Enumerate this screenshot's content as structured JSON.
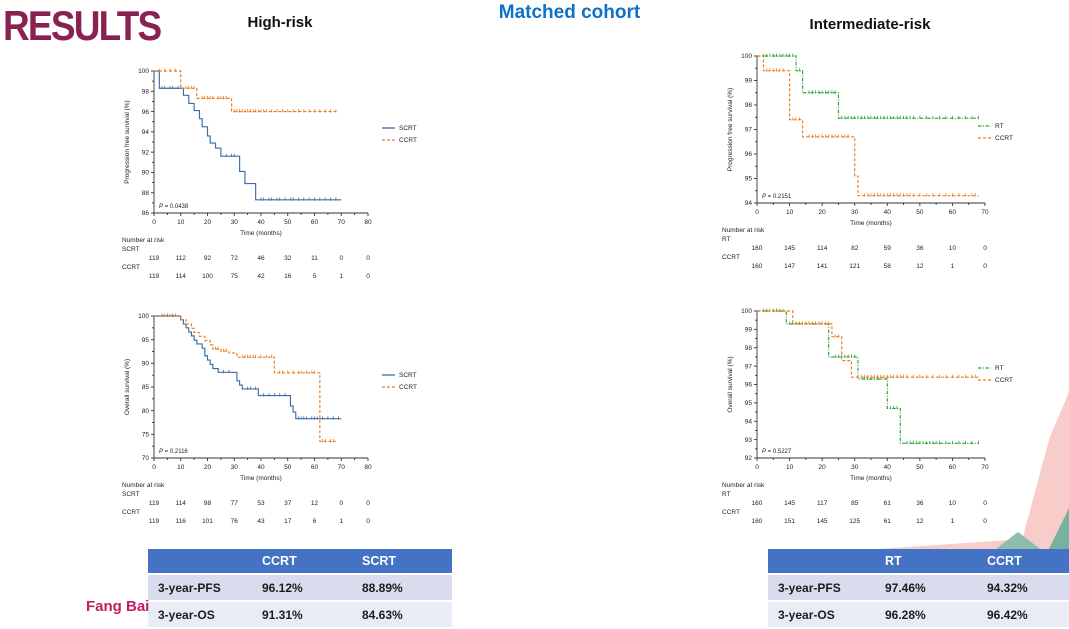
{
  "slide": {
    "title": "RESULTS",
    "center_header": "Matched cohort",
    "left_header": "High-risk",
    "right_header": "Intermediate-risk",
    "author": "Fang Bai",
    "colors": {
      "title": "#8A2251",
      "subtitle": "#0E72C6",
      "author": "#C02062",
      "risk_text": "#3333B2",
      "scrt": "#3C6EA5",
      "ccrt": "#E97C20",
      "rt": "#2FA037",
      "table_header_bg": "#4472C4",
      "row_odd_bg": "#D9DCEC",
      "row_even_bg": "#EAECF5"
    }
  },
  "chart_data": [
    {
      "id": "pfs-high-risk",
      "type": "line",
      "subtype": "kaplan-meier",
      "group": "High-risk",
      "ylabel": "Progression free survival (%)",
      "xlabel": "Time (months)",
      "ylim": [
        86,
        100
      ],
      "ytick": 2,
      "xlim": [
        0,
        80
      ],
      "xtick": 10,
      "p_value": "P = 0.0438",
      "legend_position": "right",
      "series": [
        {
          "name": "SCRT",
          "color_key": "scrt",
          "style": "solid",
          "steps": [
            [
              0,
              100
            ],
            [
              2,
              98.3
            ],
            [
              11,
              97.6
            ],
            [
              13,
              96.8
            ],
            [
              15,
              96.1
            ],
            [
              17,
              95.3
            ],
            [
              18,
              94.5
            ],
            [
              20,
              93.6
            ],
            [
              21,
              92.9
            ],
            [
              23,
              92.4
            ],
            [
              25,
              91.6
            ],
            [
              32,
              90.1
            ],
            [
              34,
              88.9
            ],
            [
              38,
              87.3
            ],
            [
              70,
              87.3
            ]
          ],
          "censors": [
            3,
            4,
            6,
            7,
            9,
            27,
            29,
            30,
            40,
            41,
            43,
            44,
            46,
            47,
            49,
            51,
            52,
            54,
            56,
            58,
            60,
            62,
            64,
            66,
            68
          ]
        },
        {
          "name": "CCRT",
          "color_key": "ccrt",
          "style": "dashed",
          "steps": [
            [
              0,
              100
            ],
            [
              10,
              98.3
            ],
            [
              16,
              97.3
            ],
            [
              29,
              96.0
            ],
            [
              69,
              96.0
            ]
          ],
          "censors": [
            2,
            4,
            6,
            8,
            12,
            13,
            14,
            15,
            18,
            19,
            20,
            21,
            22,
            24,
            25,
            26,
            27,
            30,
            31,
            32,
            33,
            34,
            35,
            36,
            37,
            38,
            39,
            40,
            41,
            42,
            44,
            46,
            48,
            50,
            52,
            54,
            56,
            58,
            60,
            62,
            64,
            66,
            68
          ]
        }
      ],
      "risk_label": "Number at risk",
      "risk_rows": [
        {
          "name": "SCRT",
          "values": [
            119,
            112,
            92,
            72,
            46,
            32,
            11,
            0,
            0
          ]
        },
        {
          "name": "CCRT",
          "values": [
            119,
            114,
            100,
            75,
            42,
            16,
            5,
            1,
            0
          ]
        }
      ]
    },
    {
      "id": "os-high-risk",
      "type": "line",
      "subtype": "kaplan-meier",
      "group": "High-risk",
      "ylabel": "Overall survival (%)",
      "xlabel": "Time (months)",
      "ylim": [
        70,
        100
      ],
      "ytick": 5,
      "xlim": [
        0,
        80
      ],
      "xtick": 10,
      "p_value": "P = 0.2116",
      "legend_position": "right",
      "series": [
        {
          "name": "SCRT",
          "color_key": "scrt",
          "style": "solid",
          "steps": [
            [
              0,
              100
            ],
            [
              10,
              99.2
            ],
            [
              11,
              98.3
            ],
            [
              12,
              97.5
            ],
            [
              13,
              96.6
            ],
            [
              14,
              95.8
            ],
            [
              15,
              94.9
            ],
            [
              16,
              94.1
            ],
            [
              18,
              93.2
            ],
            [
              19,
              91.6
            ],
            [
              20,
              90.7
            ],
            [
              21,
              89.8
            ],
            [
              22,
              88.9
            ],
            [
              24,
              88.1
            ],
            [
              31,
              86.3
            ],
            [
              32,
              85.4
            ],
            [
              33,
              84.6
            ],
            [
              39,
              83.2
            ],
            [
              51,
              81.0
            ],
            [
              52,
              79.7
            ],
            [
              53,
              78.3
            ],
            [
              70,
              78.3
            ]
          ],
          "censors": [
            3,
            5,
            7,
            8,
            26,
            28,
            35,
            36,
            38,
            41,
            43,
            45,
            47,
            49,
            54,
            55,
            56,
            57,
            59,
            60,
            61,
            63,
            65,
            67,
            69
          ]
        },
        {
          "name": "CCRT",
          "color_key": "ccrt",
          "style": "dashed",
          "steps": [
            [
              0,
              100
            ],
            [
              10,
              99.2
            ],
            [
              12,
              98.3
            ],
            [
              14,
              97.4
            ],
            [
              15,
              96.5
            ],
            [
              17,
              95.7
            ],
            [
              19,
              94.8
            ],
            [
              21,
              93.9
            ],
            [
              22,
              93.0
            ],
            [
              25,
              92.6
            ],
            [
              28,
              92.2
            ],
            [
              31,
              91.3
            ],
            [
              45,
              88.0
            ],
            [
              62,
              73.5
            ],
            [
              68,
              73.5
            ]
          ],
          "censors": [
            4,
            6,
            8,
            23,
            24,
            26,
            27,
            33,
            34,
            35,
            36,
            37,
            38,
            40,
            42,
            44,
            47,
            48,
            50,
            52,
            54,
            55,
            57,
            59,
            60,
            63,
            64,
            66,
            67
          ]
        }
      ],
      "risk_label": "Number at risk",
      "risk_rows": [
        {
          "name": "SCRT",
          "values": [
            119,
            114,
            98,
            77,
            53,
            37,
            12,
            0,
            0
          ]
        },
        {
          "name": "CCRT",
          "values": [
            119,
            116,
            101,
            76,
            43,
            17,
            6,
            1,
            0
          ]
        }
      ]
    },
    {
      "id": "pfs-intermediate-risk",
      "type": "line",
      "subtype": "kaplan-meier",
      "group": "Intermediate-risk",
      "ylabel": "Progression free survival (%)",
      "xlabel": "Time (months)",
      "ylim": [
        94,
        100
      ],
      "ytick": 1,
      "xlim": [
        0,
        70
      ],
      "xtick": 10,
      "p_value": "P = 0.2151",
      "legend_position": "right",
      "series": [
        {
          "name": "RT",
          "color_key": "rt",
          "style": "dashdot",
          "steps": [
            [
              0,
              100
            ],
            [
              12,
              99.4
            ],
            [
              14,
              98.5
            ],
            [
              25,
              97.46
            ],
            [
              68,
              97.46
            ]
          ],
          "censors": [
            2,
            3,
            4,
            5,
            6,
            7,
            8,
            9,
            10,
            11,
            13,
            16,
            17,
            18,
            19,
            20,
            21,
            22,
            23,
            24,
            26,
            27,
            28,
            29,
            30,
            31,
            32,
            33,
            34,
            35,
            36,
            37,
            38,
            39,
            40,
            41,
            42,
            43,
            44,
            45,
            46,
            47,
            48,
            50,
            52,
            54,
            56,
            58,
            60,
            62,
            64,
            66,
            68
          ]
        },
        {
          "name": "CCRT",
          "color_key": "ccrt",
          "style": "dashed",
          "steps": [
            [
              0,
              100
            ],
            [
              2,
              99.4
            ],
            [
              10,
              97.4
            ],
            [
              14,
              96.7
            ],
            [
              30,
              95.1
            ],
            [
              31,
              94.3
            ],
            [
              68,
              94.3
            ]
          ],
          "censors": [
            3,
            4,
            5,
            6,
            7,
            8,
            11,
            12,
            13,
            16,
            17,
            18,
            19,
            20,
            21,
            22,
            23,
            24,
            25,
            26,
            27,
            28,
            33,
            34,
            35,
            36,
            37,
            38,
            39,
            40,
            41,
            42,
            43,
            44,
            45,
            46,
            47,
            48,
            50,
            52,
            54,
            56,
            58,
            60,
            62,
            64,
            66,
            67
          ]
        }
      ],
      "risk_label": "Number at risk",
      "risk_rows": [
        {
          "name": "RT",
          "values": [
            160,
            145,
            114,
            82,
            59,
            36,
            10,
            0
          ]
        },
        {
          "name": "CCRT",
          "values": [
            160,
            147,
            141,
            121,
            58,
            12,
            1,
            0
          ]
        }
      ]
    },
    {
      "id": "os-intermediate-risk",
      "type": "line",
      "subtype": "kaplan-meier",
      "group": "Intermediate-risk",
      "ylabel": "Overall survival (%)",
      "xlabel": "Time (months)",
      "ylim": [
        92,
        100
      ],
      "ytick": 1,
      "xlim": [
        0,
        70
      ],
      "xtick": 10,
      "p_value": "P = 0.5227",
      "legend_position": "right",
      "series": [
        {
          "name": "RT",
          "color_key": "rt",
          "style": "dashdot",
          "steps": [
            [
              0,
              100
            ],
            [
              9,
              99.3
            ],
            [
              22,
              97.5
            ],
            [
              31,
              96.3
            ],
            [
              40,
              94.7
            ],
            [
              44,
              92.8
            ],
            [
              68,
              92.8
            ]
          ],
          "censors": [
            2,
            3,
            4,
            5,
            6,
            7,
            10,
            11,
            12,
            13,
            14,
            15,
            16,
            17,
            18,
            19,
            20,
            24,
            25,
            26,
            27,
            28,
            29,
            30,
            33,
            34,
            35,
            36,
            37,
            38,
            41,
            42,
            43,
            46,
            47,
            48,
            49,
            50,
            51,
            52,
            53,
            54,
            55,
            56,
            58,
            60,
            62,
            64,
            66,
            68
          ]
        },
        {
          "name": "CCRT",
          "color_key": "ccrt",
          "style": "dashed",
          "steps": [
            [
              0,
              100
            ],
            [
              11,
              99.3
            ],
            [
              23,
              98.6
            ],
            [
              26,
              97.3
            ],
            [
              29,
              96.4
            ],
            [
              68,
              96.4
            ]
          ],
          "censors": [
            2,
            4,
            6,
            8,
            13,
            14,
            15,
            16,
            17,
            18,
            19,
            20,
            21,
            22,
            24,
            25,
            31,
            32,
            33,
            34,
            35,
            36,
            37,
            38,
            39,
            40,
            41,
            42,
            43,
            44,
            45,
            46,
            48,
            50,
            52,
            54,
            56,
            58,
            60,
            62,
            64,
            66,
            67
          ]
        }
      ],
      "risk_label": "Number at risk",
      "risk_rows": [
        {
          "name": "RT",
          "values": [
            160,
            145,
            117,
            85,
            61,
            36,
            10,
            0
          ]
        },
        {
          "name": "CCRT",
          "values": [
            160,
            151,
            145,
            125,
            61,
            12,
            1,
            0
          ]
        }
      ]
    }
  ],
  "tables": [
    {
      "id": "high-risk-summary",
      "columns": [
        "",
        "CCRT",
        "SCRT"
      ],
      "rows": [
        [
          "3-year-PFS",
          "96.12%",
          "88.89%"
        ],
        [
          "3-year-OS",
          "91.31%",
          "84.63%"
        ]
      ]
    },
    {
      "id": "intermediate-risk-summary",
      "columns": [
        "",
        "RT",
        "CCRT"
      ],
      "rows": [
        [
          "3-year-PFS",
          "97.46%",
          "94.32%"
        ],
        [
          "3-year-OS",
          "96.28%",
          "96.42%"
        ]
      ]
    }
  ]
}
